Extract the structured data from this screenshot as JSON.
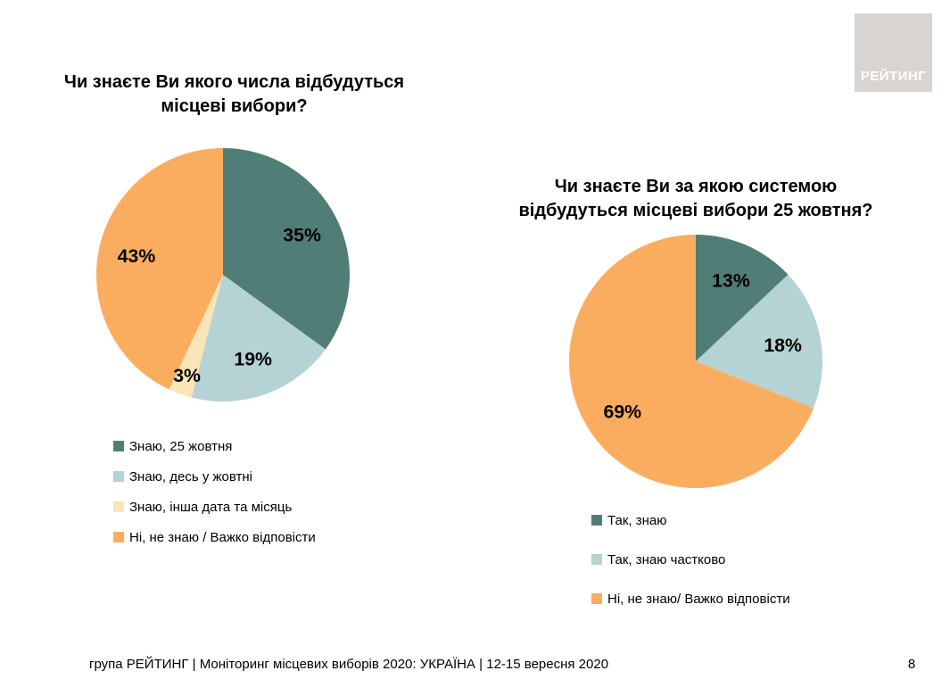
{
  "page": {
    "logo_text": "РЕЙТИНГ",
    "footer": "група РЕЙТИНГ | Моніторинг місцевих виборів 2020: УКРАЇНА | 12-15 вересня 2020",
    "page_number": "8"
  },
  "colors": {
    "teal": "#507D76",
    "light_blue": "#B5D2D4",
    "pale_yellow": "#FBE4B8",
    "orange": "#FBAD5F",
    "logo_bg": "#D8D4D1",
    "label_text": "#000000"
  },
  "chart_data": [
    {
      "type": "pie",
      "title": "Чи знаєте Ви якого числа відбудуться місцеві вибори?",
      "title_lines": [
        "Чи знаєте Ви якого числа відбудуться",
        "місцеві вибори?"
      ],
      "labels": [
        "Знаю, 25 жовтня",
        "Знаю, десь у жовтні",
        "Знаю, інша дата та місяць",
        "Ні, не знаю / Важко відповісти"
      ],
      "values": [
        35,
        19,
        3,
        43
      ],
      "value_labels": [
        "35%",
        "19%",
        "3%",
        "43%"
      ],
      "colors": [
        "#507D76",
        "#B5D2D4",
        "#FBE4B8",
        "#FBAD5F"
      ],
      "start_angle_deg": 0,
      "direction": "clockwise",
      "legend_position": "bottom-left"
    },
    {
      "type": "pie",
      "title": "Чи знаєте Ви за якою системою відбудуться місцеві вибори 25 жовтня?",
      "title_lines": [
        "Чи знаєте Ви за якою системою",
        "відбудуться місцеві вибори 25 жовтня?"
      ],
      "labels": [
        "Так, знаю",
        "Так, знаю частково",
        "Ні, не знаю/ Важко відповісти"
      ],
      "values": [
        13,
        18,
        69
      ],
      "value_labels": [
        "13%",
        "18%",
        "69%"
      ],
      "colors": [
        "#507D76",
        "#B5D2D4",
        "#FBAD5F"
      ],
      "start_angle_deg": 0,
      "direction": "clockwise",
      "legend_position": "bottom-left"
    }
  ]
}
